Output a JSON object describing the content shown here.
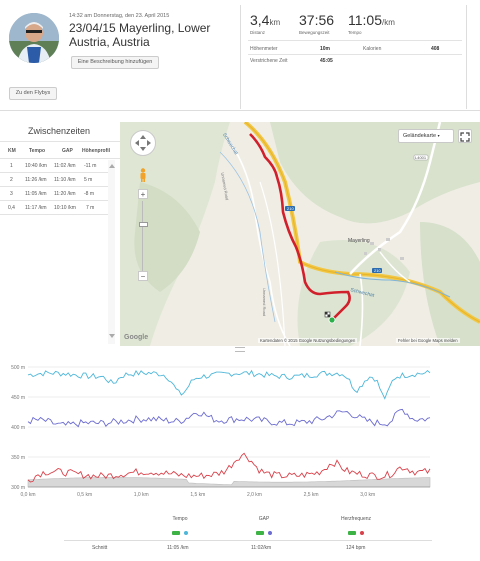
{
  "activity": {
    "date_line": "14:32 am Donnerstag, den 23. April 2015",
    "title": "23/04/15 Mayerling, Lower Austria, Austria",
    "add_description": "Eine Beschreibung hinzufügen",
    "flyby": "Zu den Flybys"
  },
  "stats": {
    "distance": {
      "value": "3,4",
      "unit": "km",
      "label": "Distanz"
    },
    "moving_time": {
      "value": "37:56",
      "label": "Bewegungszeit"
    },
    "pace": {
      "value": "11:05",
      "unit": "/km",
      "label": "Tempo"
    },
    "rows": [
      {
        "label": "Höhenmeter",
        "value": "10m",
        "label2": "Kalorien",
        "value2": "408"
      },
      {
        "label": "Verstrichene Zeit",
        "value": "45:05",
        "label2": "",
        "value2": ""
      }
    ]
  },
  "splits": {
    "title": "Zwischenzeiten",
    "headers": [
      "KM",
      "Tempo",
      "GAP",
      "Höhenprofil"
    ],
    "rows": [
      [
        "1",
        "10:40 /km",
        "11:02 /km",
        "-11 m"
      ],
      [
        "2",
        "11:26 /km",
        "11:10 /km",
        "5 m"
      ],
      [
        "3",
        "11:05 /km",
        "11:20 /km",
        "-8 m"
      ],
      [
        "0,4",
        "11:17 /km",
        "10:10 /km",
        "7 m"
      ]
    ]
  },
  "map": {
    "type_selector": "Geländekarte",
    "labels": {
      "schwechat_top": "Schwechat",
      "mayerling": "Mayerling",
      "schwechat_bottom": "Schwechat",
      "road_210": "210",
      "road_l4001": "L4001",
      "unnamed_road_1": "Unnamed Road",
      "unnamed_road_2": "Unnamed Road",
      "road_210_b": "210"
    },
    "attribution": "Kartendaten © 2015 Google",
    "terms": "Nutzungsbedingungen",
    "report": "Fehler bei Google Maps melden",
    "logo": "Google",
    "zoom_in": "+",
    "zoom_out": "−"
  },
  "chart_data": {
    "type": "line",
    "x_ticks": [
      "0,0 km",
      "0,5 km",
      "1,0 km",
      "1,5 km",
      "2,0 km",
      "2,5 km",
      "3,0 km"
    ],
    "y_ticks": [
      "500 m",
      "450 m",
      "400 m",
      "350 m",
      "300 m"
    ],
    "ylim": [
      300,
      500
    ],
    "xlim": [
      0,
      3.55
    ],
    "series": [
      {
        "name": "Tempo",
        "color": "#4db6d9"
      },
      {
        "name": "GAP",
        "color": "#6b6bd0"
      },
      {
        "name": "Herzfrequenz",
        "color": "#d9414a"
      }
    ]
  },
  "summary": {
    "row_label": "Schnitt",
    "values": [
      "11:05 /km",
      "11:02/km",
      "124 bpm"
    ],
    "legend": [
      "Tempo",
      "GAP",
      "Herzfrequenz"
    ]
  }
}
